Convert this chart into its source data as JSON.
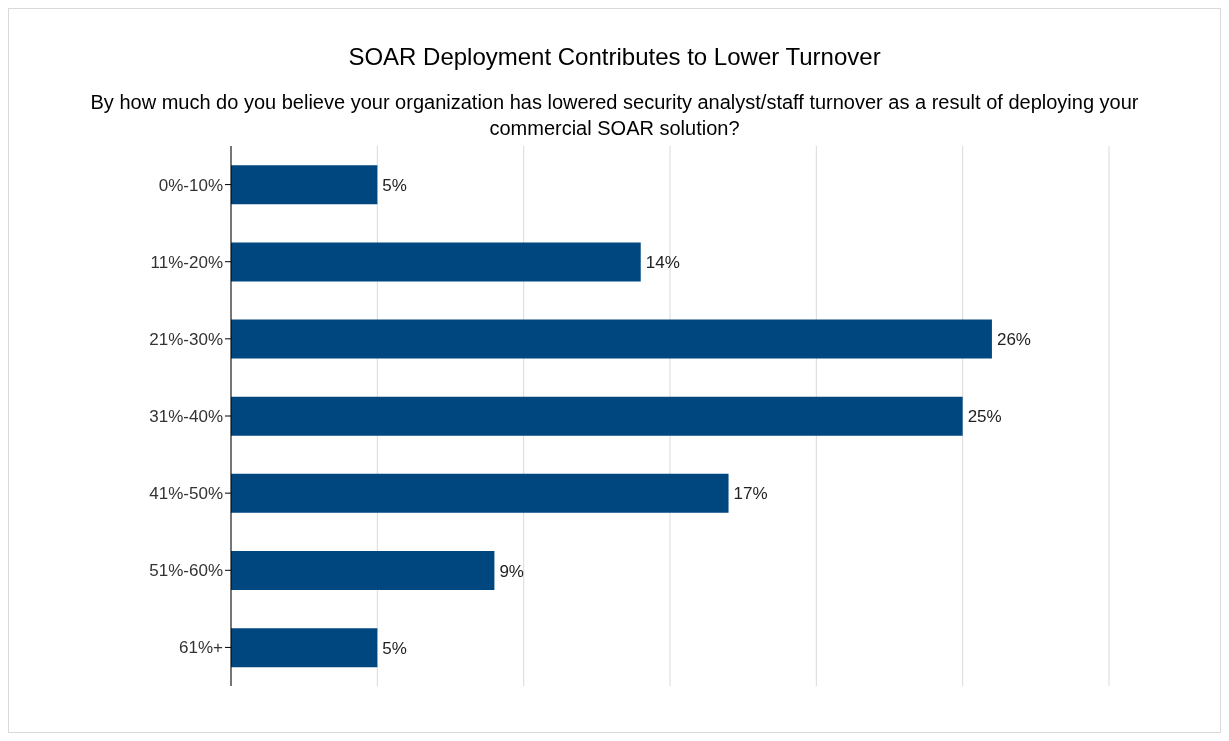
{
  "chart_data": {
    "type": "bar",
    "orientation": "horizontal",
    "title": "SOAR Deployment Contributes to Lower Turnover",
    "subtitle": "By how much do you believe your organization has lowered security analyst/staff turnover as a result of deploying your commercial SOAR solution?",
    "categories": [
      "0%-10%",
      "11%-20%",
      "21%-30%",
      "31%-40%",
      "41%-50%",
      "51%-60%",
      "61%+"
    ],
    "values": [
      5,
      14,
      26,
      25,
      17,
      9,
      5
    ],
    "value_labels": [
      "5%",
      "14%",
      "26%",
      "25%",
      "17%",
      "9%",
      "5%"
    ],
    "color": "#00467f",
    "xlim": [
      0,
      30
    ],
    "xticks": [
      {
        "value": 0,
        "label": null
      },
      {
        "value": 5,
        "label": null
      },
      {
        "value": 10,
        "label": null
      },
      {
        "value": 15,
        "label": null
      },
      {
        "value": 20,
        "label": null
      },
      {
        "value": 25,
        "label": null
      },
      {
        "value": 30,
        "label": null
      }
    ],
    "tick_labels": "y",
    "grid": "x",
    "legend": false
  }
}
